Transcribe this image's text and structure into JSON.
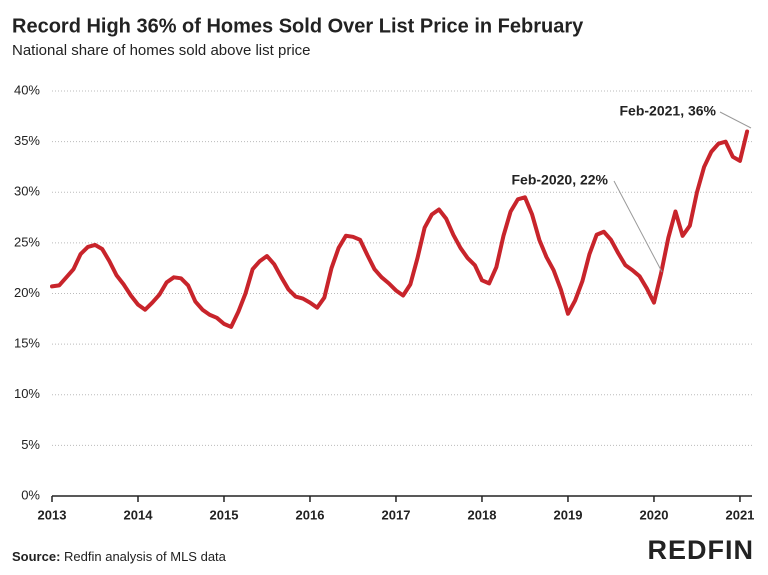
{
  "chart_data": {
    "type": "line",
    "title": "Record High 36% of Homes Sold Over List Price in February",
    "subtitle": "National share of homes sold above list price",
    "source_label": "Source:",
    "source": "Redfin analysis of MLS data",
    "logo": "REDFIN",
    "color": "#c8242b",
    "grid": true,
    "x": [
      2013,
      2013.083,
      2013.167,
      2013.25,
      2013.333,
      2013.417,
      2013.5,
      2013.583,
      2013.667,
      2013.75,
      2013.833,
      2013.917,
      2014,
      2014.083,
      2014.167,
      2014.25,
      2014.333,
      2014.417,
      2014.5,
      2014.583,
      2014.667,
      2014.75,
      2014.833,
      2014.917,
      2015,
      2015.083,
      2015.167,
      2015.25,
      2015.333,
      2015.417,
      2015.5,
      2015.583,
      2015.667,
      2015.75,
      2015.833,
      2015.917,
      2016,
      2016.083,
      2016.167,
      2016.25,
      2016.333,
      2016.417,
      2016.5,
      2016.583,
      2016.667,
      2016.75,
      2016.833,
      2016.917,
      2017,
      2017.083,
      2017.167,
      2017.25,
      2017.333,
      2017.417,
      2017.5,
      2017.583,
      2017.667,
      2017.75,
      2017.833,
      2017.917,
      2018,
      2018.083,
      2018.167,
      2018.25,
      2018.333,
      2018.417,
      2018.5,
      2018.583,
      2018.667,
      2018.75,
      2018.833,
      2018.917,
      2019,
      2019.083,
      2019.167,
      2019.25,
      2019.333,
      2019.417,
      2019.5,
      2019.583,
      2019.667,
      2019.75,
      2019.833,
      2019.917,
      2020,
      2020.083,
      2020.167,
      2020.25,
      2020.333,
      2020.417,
      2020.5,
      2020.583,
      2020.667,
      2020.75,
      2020.833,
      2020.917,
      2021,
      2021.083
    ],
    "values": [
      20.7,
      20.8,
      21.6,
      22.4,
      23.9,
      24.6,
      24.8,
      24.4,
      23.2,
      21.8,
      20.9,
      19.8,
      18.9,
      18.4,
      19.1,
      19.9,
      21.1,
      21.6,
      21.5,
      20.8,
      19.2,
      18.4,
      17.9,
      17.6,
      17.0,
      16.7,
      18.2,
      20.0,
      22.4,
      23.2,
      23.7,
      22.9,
      21.6,
      20.4,
      19.7,
      19.5,
      19.1,
      18.6,
      19.6,
      22.5,
      24.5,
      25.7,
      25.6,
      25.3,
      23.8,
      22.4,
      21.6,
      21.0,
      20.3,
      19.8,
      20.9,
      23.5,
      26.5,
      27.8,
      28.3,
      27.4,
      25.8,
      24.5,
      23.5,
      22.8,
      21.3,
      21.0,
      22.6,
      25.7,
      28.1,
      29.3,
      29.5,
      27.8,
      25.3,
      23.6,
      22.3,
      20.4,
      18.0,
      19.3,
      21.2,
      23.9,
      25.8,
      26.1,
      25.3,
      24.0,
      22.8,
      22.3,
      21.7,
      20.5,
      19.1,
      22.0,
      25.5,
      28.1,
      25.7,
      26.7,
      30.0,
      32.5,
      34.0,
      34.8,
      35.0,
      33.5,
      33.1,
      36.0
    ],
    "xlim": [
      2013,
      2021.14
    ],
    "xticks": [
      2013,
      2014,
      2015,
      2016,
      2017,
      2018,
      2019,
      2020,
      2021
    ],
    "ylim": [
      0,
      40
    ],
    "yticks": [
      {
        "value": 0,
        "label": "0%"
      },
      {
        "value": 5,
        "label": "5%"
      },
      {
        "value": 10,
        "label": "10%"
      },
      {
        "value": 15,
        "label": "15%"
      },
      {
        "value": 20,
        "label": "20%"
      },
      {
        "value": 25,
        "label": "25%"
      },
      {
        "value": 30,
        "label": "30%"
      },
      {
        "value": 35,
        "label": "35%"
      },
      {
        "value": 40,
        "label": "40%"
      }
    ],
    "annotations": [
      {
        "text": "Feb-2021, 36%"
      },
      {
        "text": "Feb-2020, 22%"
      }
    ]
  }
}
